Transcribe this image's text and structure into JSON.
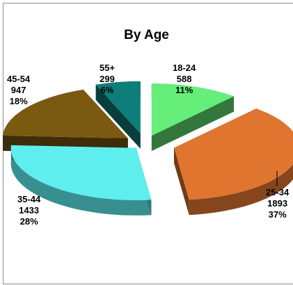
{
  "chart_data": {
    "type": "pie",
    "title": "By Age",
    "categories": [
      "18-24",
      "25-34",
      "35-44",
      "45-54",
      "55+"
    ],
    "values": [
      588,
      1893,
      1433,
      947,
      299
    ],
    "percent_labels": [
      "11%",
      "37%",
      "28%",
      "18%",
      "6%"
    ],
    "colors": {
      "18-24": "#66ee7a",
      "25-34": "#e07530",
      "35-44": "#5eeeee",
      "45-54": "#7a5a10",
      "55+": "#0f7e7a"
    },
    "exploded": true,
    "three_d": true,
    "legend": "none"
  }
}
